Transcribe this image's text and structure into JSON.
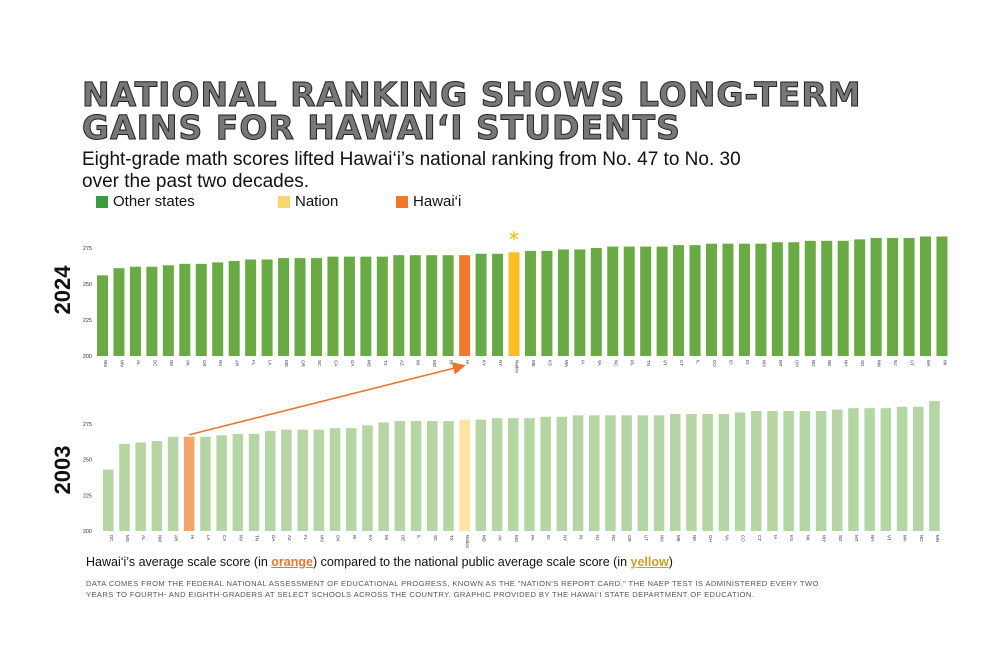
{
  "header": {
    "title_line1": "NATIONAL RANKING SHOWS LONG-TERM",
    "title_line2": "GAINS FOR HAWAI‘I STUDENTS",
    "subtitle": "Eight-grade math scores lifted Hawai‘i’s national ranking from No. 47 to No. 30 over the past two decades."
  },
  "legend": [
    {
      "label": "Other states",
      "color": "#3f9b3f"
    },
    {
      "label": "Nation",
      "color": "#f9d56e"
    },
    {
      "label": "Hawai‘i",
      "color": "#ef7a2f"
    }
  ],
  "caption": {
    "before": "Hawai‘i’s average scale score (in ",
    "orange": "orange",
    "middle": ") compared to the national public average scale score (in ",
    "yellow": "yellow",
    "after": ")"
  },
  "note": "Data comes from the federal National Assessment of Educational Progress, known as the \"Nation's Report Card.\" The NAEP test is administered every two years to fourth- and eighth-graders at select schools across the country. Graphic provided by the Hawai‘i State Department of Education.",
  "chart_data": [
    {
      "type": "bar",
      "title": "2024",
      "ylim": [
        200,
        285
      ],
      "yticks": [
        200,
        225,
        250,
        275
      ],
      "grid": false,
      "colors": {
        "state": "#6aaa45",
        "nation": "#fbbf24",
        "hawaii": "#ef7a2f"
      },
      "annotation": "*",
      "categories": [
        "NM",
        "WV",
        "AL",
        "DC",
        "DE",
        "AK",
        "OK",
        "NV",
        "AR",
        "FL",
        "LA",
        "MD",
        "OR",
        "SC",
        "CA",
        "GA",
        "MS",
        "TX",
        "AZ",
        "MI",
        "MO",
        "RI",
        "HI",
        "KY",
        "NY",
        "Nation",
        "ME",
        "KS",
        "WA",
        "IA",
        "VA",
        "NC",
        "PA",
        "TN",
        "VT",
        "CT",
        "IL",
        "CO",
        "ID",
        "IN",
        "WY",
        "MT",
        "OH",
        "ND",
        "NE",
        "NH",
        "SD",
        "MN",
        "NJ",
        "UT",
        "MA",
        "WI"
      ],
      "values": [
        256,
        261,
        262,
        262,
        263,
        264,
        264,
        265,
        266,
        267,
        267,
        268,
        268,
        268,
        269,
        269,
        269,
        269,
        270,
        270,
        270,
        270,
        270,
        271,
        271,
        272,
        273,
        273,
        274,
        274,
        275,
        276,
        276,
        276,
        276,
        277,
        277,
        278,
        278,
        278,
        278,
        279,
        279,
        280,
        280,
        280,
        281,
        282,
        282,
        282,
        283,
        283
      ]
    },
    {
      "type": "bar",
      "title": "2003",
      "ylim": [
        200,
        292
      ],
      "yticks": [
        200,
        225,
        250,
        275
      ],
      "grid": false,
      "colors": {
        "state": "#b5d6a4",
        "nation": "#fde3a0",
        "hawaii": "#f3a56a"
      },
      "categories": [
        "DC",
        "MS",
        "AL",
        "NM",
        "AR",
        "HI",
        "LA",
        "CA",
        "NV",
        "TN",
        "GA",
        "AZ",
        "FL",
        "WV",
        "OK",
        "RI",
        "KY",
        "MI",
        "DE",
        "IL",
        "SC",
        "TX",
        "Nation",
        "MD",
        "AK",
        "MO",
        "PA",
        "ID",
        "NY",
        "IN",
        "NJ",
        "NC",
        "OR",
        "UT",
        "WA",
        "ME",
        "NE",
        "OH",
        "VA",
        "CO",
        "CT",
        "IA",
        "KS",
        "WI",
        "WY",
        "SD",
        "MT",
        "NH",
        "VT",
        "MA",
        "ND",
        "MN"
      ],
      "values": [
        243,
        261,
        262,
        263,
        266,
        266,
        266,
        267,
        268,
        268,
        270,
        271,
        271,
        271,
        272,
        272,
        274,
        276,
        277,
        277,
        277,
        277,
        278,
        278,
        279,
        279,
        279,
        280,
        280,
        281,
        281,
        281,
        281,
        281,
        281,
        282,
        282,
        282,
        282,
        283,
        284,
        284,
        284,
        284,
        284,
        285,
        286,
        286,
        286,
        287,
        287,
        291
      ]
    }
  ]
}
